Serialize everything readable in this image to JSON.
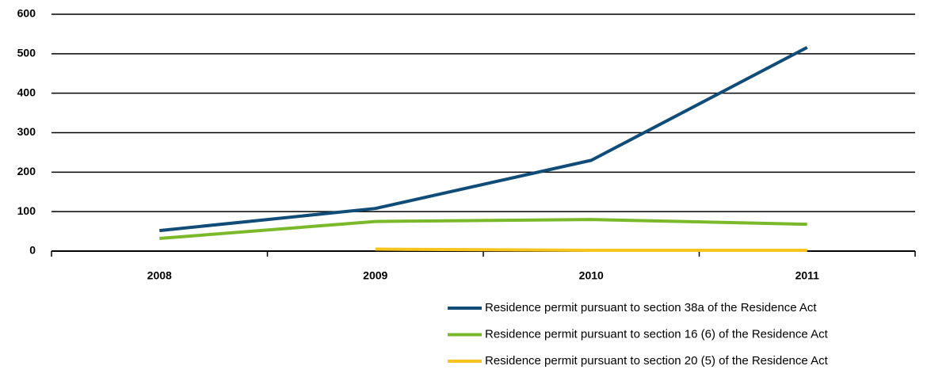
{
  "chart_data": {
    "type": "line",
    "categories": [
      "2008",
      "2009",
      "2010",
      "2011"
    ],
    "series": [
      {
        "name": "Residence permit pursuant to section 38a of the Residence Act",
        "color": "#0f4c78",
        "values": [
          52,
          108,
          230,
          516
        ]
      },
      {
        "name": "Residence permit pursuant to section 16 (6) of the Residence Act",
        "color": "#7ab929",
        "values": [
          32,
          75,
          80,
          68
        ]
      },
      {
        "name": "Residence permit pursuant to section 20 (5) of the Residence Act",
        "color": "#f7c51e",
        "values": [
          null,
          5,
          2,
          2
        ]
      }
    ],
    "ylim": [
      0,
      600
    ],
    "yticks": [
      0,
      100,
      200,
      300,
      400,
      500,
      600
    ],
    "grid": true,
    "legend": "bottom-right"
  }
}
